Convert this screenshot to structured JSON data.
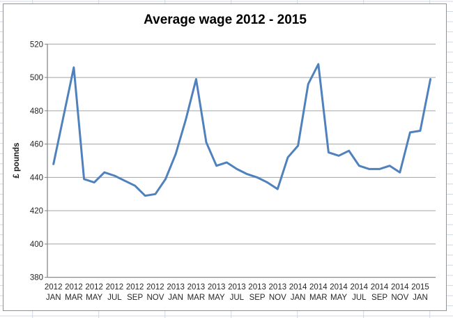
{
  "chart_data": {
    "type": "line",
    "title": "Average wage 2012 - 2015",
    "ylabel": "£ pounds",
    "xlabel": "",
    "ylim": [
      380,
      520
    ],
    "yticks": [
      520,
      500,
      480,
      460,
      440,
      420,
      400,
      380
    ],
    "grid": true,
    "legend": "none",
    "line_color": "#4F81BD",
    "x": [
      "2012 JAN",
      "2012 FEB",
      "2012 MAR",
      "2012 APR",
      "2012 MAY",
      "2012 JUN",
      "2012 JUL",
      "2012 AUG",
      "2012 SEP",
      "2012 OCT",
      "2012 NOV",
      "2012 DEC",
      "2013 JAN",
      "2013 FEB",
      "2013 MAR",
      "2013 APR",
      "2013 MAY",
      "2013 JUN",
      "2013 JUL",
      "2013 AUG",
      "2013 SEP",
      "2013 OCT",
      "2013 NOV",
      "2013 DEC",
      "2014 JAN",
      "2014 FEB",
      "2014 MAR",
      "2014 APR",
      "2014 MAY",
      "2014 JUN",
      "2014 JUL",
      "2014 AUG",
      "2014 SEP",
      "2014 OCT",
      "2014 NOV",
      "2014 DEC",
      "2015 JAN",
      "2015 FEB"
    ],
    "values": [
      448,
      477,
      506,
      439,
      437,
      443,
      441,
      438,
      435,
      429,
      430,
      439,
      454,
      475,
      499,
      461,
      447,
      449,
      445,
      442,
      440,
      437,
      433,
      452,
      459,
      496,
      508,
      455,
      453,
      456,
      447,
      445,
      445,
      447,
      443,
      467,
      468,
      499
    ],
    "x_tick_labels": [
      {
        "year": "2012",
        "month": "JAN"
      },
      {
        "year": "2012",
        "month": "MAR"
      },
      {
        "year": "2012",
        "month": "MAY"
      },
      {
        "year": "2012",
        "month": "JUL"
      },
      {
        "year": "2012",
        "month": "SEP"
      },
      {
        "year": "2012",
        "month": "NOV"
      },
      {
        "year": "2013",
        "month": "JAN"
      },
      {
        "year": "2013",
        "month": "MAR"
      },
      {
        "year": "2013",
        "month": "MAY"
      },
      {
        "year": "2013",
        "month": "JUL"
      },
      {
        "year": "2013",
        "month": "SEP"
      },
      {
        "year": "2013",
        "month": "NOV"
      },
      {
        "year": "2014",
        "month": "JAN"
      },
      {
        "year": "2014",
        "month": "MAR"
      },
      {
        "year": "2014",
        "month": "MAY"
      },
      {
        "year": "2014",
        "month": "JUL"
      },
      {
        "year": "2014",
        "month": "SEP"
      },
      {
        "year": "2014",
        "month": "NOV"
      },
      {
        "year": "2015",
        "month": "JAN"
      }
    ],
    "colors": {
      "series": "#4F81BD",
      "gridline": "#A3A3A3",
      "axis_line": "#7F7F7F",
      "tick_text": "#262626",
      "chart_border": "#919191",
      "sheet_gridline": "#D0D7E5",
      "background": "#FFFFFF"
    }
  }
}
